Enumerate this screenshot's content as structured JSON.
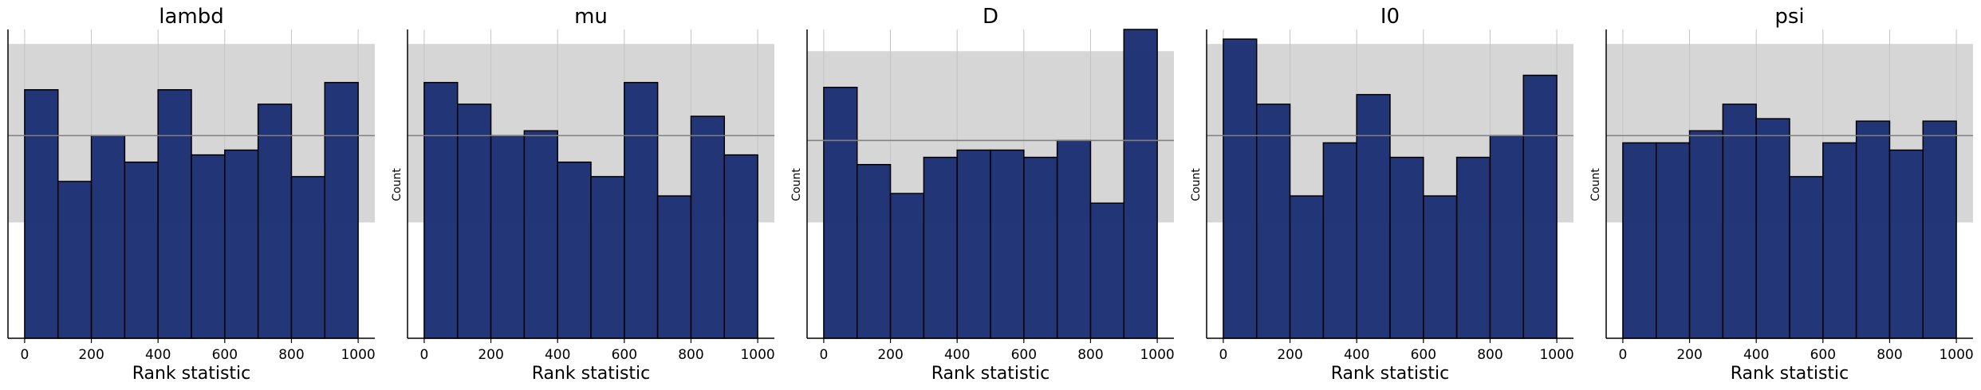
{
  "colors": {
    "bar_fill": "#1c2f74",
    "bar_edge": "#000000",
    "band_fill": "#d6d6d6",
    "mean_line": "#808080",
    "grid": "#c4c4c4"
  },
  "chart_data": [
    {
      "type": "bar",
      "title": "lambd",
      "xlabel": "Rank statistic",
      "ylabel": "",
      "bin_edges": [
        0,
        100,
        200,
        300,
        400,
        500,
        600,
        700,
        800,
        900,
        1000
      ],
      "values": [
        103,
        65,
        84,
        73,
        103,
        76,
        78,
        97,
        67,
        106
      ],
      "expected": 84,
      "band": [
        48,
        122
      ],
      "xticks": [
        0,
        200,
        400,
        600,
        800,
        1000
      ],
      "xlim": [
        -50,
        1050
      ],
      "ylim": [
        0,
        128
      ],
      "grid": true
    },
    {
      "type": "bar",
      "title": "mu",
      "xlabel": "Rank statistic",
      "ylabel": "Count",
      "bin_edges": [
        0,
        100,
        200,
        300,
        400,
        500,
        600,
        700,
        800,
        900,
        1000
      ],
      "values": [
        106,
        97,
        84,
        86,
        73,
        67,
        106,
        59,
        92,
        76
      ],
      "expected": 84,
      "band": [
        48,
        122
      ],
      "xticks": [
        0,
        200,
        400,
        600,
        800,
        1000
      ],
      "xlim": [
        -50,
        1050
      ],
      "ylim": [
        0,
        128
      ],
      "grid": true
    },
    {
      "type": "bar",
      "title": "D",
      "xlabel": "Rank statistic",
      "ylabel": "Count",
      "bin_edges": [
        0,
        100,
        200,
        300,
        400,
        500,
        600,
        700,
        800,
        900,
        1000
      ],
      "values": [
        104,
        72,
        60,
        75,
        78,
        78,
        75,
        82,
        56,
        128
      ],
      "expected": 82,
      "band": [
        48,
        119
      ],
      "xticks": [
        0,
        200,
        400,
        600,
        800,
        1000
      ],
      "xlim": [
        -50,
        1050
      ],
      "ylim": [
        0,
        128
      ],
      "grid": true
    },
    {
      "type": "bar",
      "title": "I0",
      "xlabel": "Rank statistic",
      "ylabel": "Count",
      "bin_edges": [
        0,
        100,
        200,
        300,
        400,
        500,
        600,
        700,
        800,
        900,
        1000
      ],
      "values": [
        124,
        97,
        59,
        81,
        101,
        75,
        59,
        75,
        84,
        109
      ],
      "expected": 84,
      "band": [
        48,
        122
      ],
      "xticks": [
        0,
        200,
        400,
        600,
        800,
        1000
      ],
      "xlim": [
        -50,
        1050
      ],
      "ylim": [
        0,
        128
      ],
      "grid": true
    },
    {
      "type": "bar",
      "title": "psi",
      "xlabel": "Rank statistic",
      "ylabel": "Count",
      "bin_edges": [
        0,
        100,
        200,
        300,
        400,
        500,
        600,
        700,
        800,
        900,
        1000
      ],
      "values": [
        81,
        81,
        86,
        97,
        91,
        67,
        81,
        90,
        78,
        90
      ],
      "expected": 84,
      "band": [
        48,
        122
      ],
      "xticks": [
        0,
        200,
        400,
        600,
        800,
        1000
      ],
      "xlim": [
        -50,
        1050
      ],
      "ylim": [
        0,
        128
      ],
      "grid": true
    }
  ]
}
